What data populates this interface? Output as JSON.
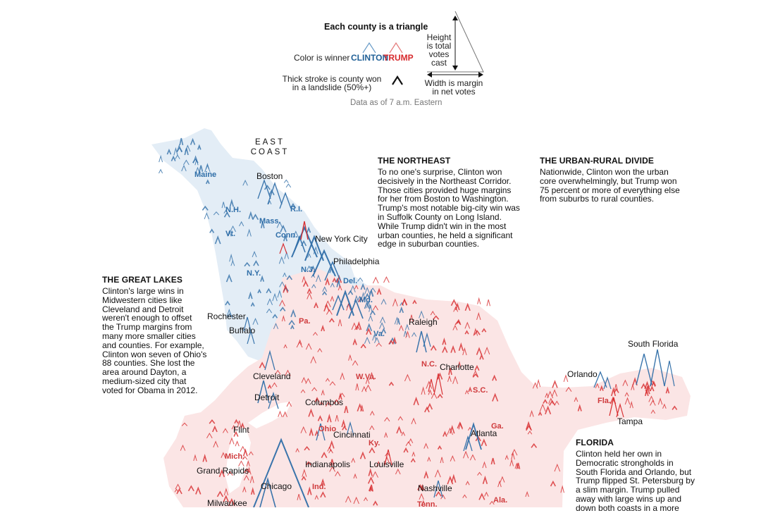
{
  "legend": {
    "title": "Each county is a triangle",
    "color_label": "Color is winner",
    "clinton": "CLINTON",
    "trump": "TRUMP",
    "height_lines": [
      "Height",
      "is total",
      "votes cast"
    ],
    "width_lines": [
      "Width is margin",
      "in net votes"
    ],
    "stroke_lines": [
      "Thick stroke is county won",
      "in a landslide (50%+)"
    ],
    "data_note": "Data as of 7 a.m. Eastern"
  },
  "map_title": [
    "EAST",
    "COAST"
  ],
  "regions": {
    "northeast": {
      "heading": "THE NORTHEAST",
      "lines": [
        "To no one's surprise, Clinton won",
        "decisively in the Northeast Corridor.",
        "Those cities provided huge margins",
        "for her from Boston to Washington.",
        "Trump's most notable big-city win was",
        "in Suffolk County on Long Island.",
        "While Trump didn't win in the most",
        "urban counties, he held a significant",
        "edge in suburban counties."
      ]
    },
    "urban_rural": {
      "heading": "THE URBAN-RURAL DIVIDE",
      "lines": [
        "Nationwide, Clinton won the urban",
        "core overwhelmingly, but Trump won",
        "75 percent or more of everything else",
        "from suburbs to rural counties."
      ]
    },
    "great_lakes": {
      "heading": "THE GREAT LAKES",
      "lines": [
        "Clinton's large wins in",
        "Midwestern cities like",
        "Cleveland and Detroit",
        "weren't enough to offset",
        "the Trump margins from",
        "many more smaller cities",
        "and counties. For example,",
        "Clinton won seven of Ohio's",
        "88 counties. She lost the",
        "area around Dayton, a",
        "medium-sized city that",
        "voted for Obama in 2012."
      ]
    },
    "florida": {
      "heading": "FLORIDA",
      "lines": [
        "Clinton held her own in",
        "Democratic strongholds in",
        "South Florida and Orlando, but",
        "Trump flipped St. Petersburg by",
        "a slim margin. Trump pulled",
        "away with large wins up and",
        "down both coasts in a more"
      ]
    }
  },
  "states_blue": [
    "Maine",
    "N.H.",
    "Vt.",
    "Mass.",
    "R.I.",
    "Conn.",
    "N.Y.",
    "N.J.",
    "Del.",
    "Md.",
    "Va."
  ],
  "states_red": [
    "Pa.",
    "N.C.",
    "W.Va.",
    "S.C.",
    "Fla.",
    "Ohio",
    "Ga.",
    "Ky.",
    "Mich.",
    "Ind.",
    "Tenn.",
    "Ala."
  ],
  "cities": [
    "Boston",
    "New York City",
    "Philadelphia",
    "Rochester",
    "Buffalo",
    "Raleigh",
    "Charlotte",
    "South Florida",
    "Orlando",
    "Cleveland",
    "Detroit",
    "Columbus",
    "Tampa",
    "Flint",
    "Cincinnati",
    "Atlanta",
    "Grand Rapids",
    "Indianapolis",
    "Louisville",
    "Chicago",
    "Nashville",
    "Milwaukee"
  ],
  "colors": {
    "clinton": "#2f6ea8",
    "trump": "#d7292c",
    "clinton_area": "#e3edf6",
    "trump_area": "#fbe5e5"
  }
}
